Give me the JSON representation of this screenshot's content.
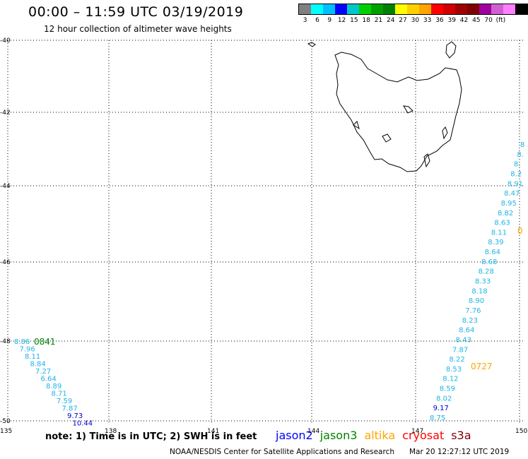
{
  "header": {
    "title": "00:00 – 11:59 UTC 03/19/2019",
    "subtitle": "12 hour collection of altimeter wave heights"
  },
  "colorbar": {
    "swatches": [
      "#808080",
      "#00ffff",
      "#00bfff",
      "#0000ff",
      "#00c8c8",
      "#00d000",
      "#00a000",
      "#008000",
      "#ffff00",
      "#ffd000",
      "#ffa500",
      "#ff0000",
      "#d00000",
      "#a00000",
      "#800000",
      "#a000a0",
      "#d060d0",
      "#ff80ff",
      "#000000"
    ],
    "labels": [
      "3",
      "6",
      "9",
      "12",
      "15",
      "18",
      "21",
      "24",
      "27",
      "30",
      "33",
      "36",
      "39",
      "42",
      "45",
      "70",
      "(ft)"
    ]
  },
  "map": {
    "lat_labels": [
      "-40",
      "-42",
      "-44",
      "-46",
      "-48",
      "-50"
    ],
    "lon_labels": [
      "135",
      "138",
      "141",
      "144",
      "147",
      "150"
    ],
    "track_west": {
      "time_label": "0841",
      "values": [
        "8.86",
        "7.96",
        "8.11",
        "8.84",
        "7.27",
        "6.64",
        "8.89",
        "8.71",
        "7.59",
        "7.87",
        "9.73",
        "10.44"
      ]
    },
    "track_east": {
      "time_labels": [
        "0727",
        "0"
      ],
      "values": [
        "8",
        "8.",
        "8.",
        "8.2",
        "8.91",
        "8.47",
        "8.95",
        "8.82",
        "8.63",
        "8.11",
        "8.39",
        "8.64",
        "8.68",
        "8.28",
        "8.33",
        "8.18",
        "8.90",
        "7.76",
        "8.23",
        "8.64",
        "8.43",
        "7.87",
        "8.22",
        "8.53",
        "8.12",
        "8.59",
        "8.02",
        "9.17",
        "8.75"
      ]
    }
  },
  "footer": {
    "note": "note: 1) Time is in UTC; 2) SWH is in feet",
    "legend": [
      {
        "name": "jason2",
        "color": "#0000ff"
      },
      {
        "name": "jason3",
        "color": "#008000"
      },
      {
        "name": "altika",
        "color": "#ffa500"
      },
      {
        "name": "cryosat",
        "color": "#ff0000"
      },
      {
        "name": "s3a",
        "color": "#800000"
      }
    ],
    "credit": "NOAA/NESDIS Center for Satellite Applications and Research",
    "timestamp": "Mar 20 12:27:12 UTC 2019"
  }
}
